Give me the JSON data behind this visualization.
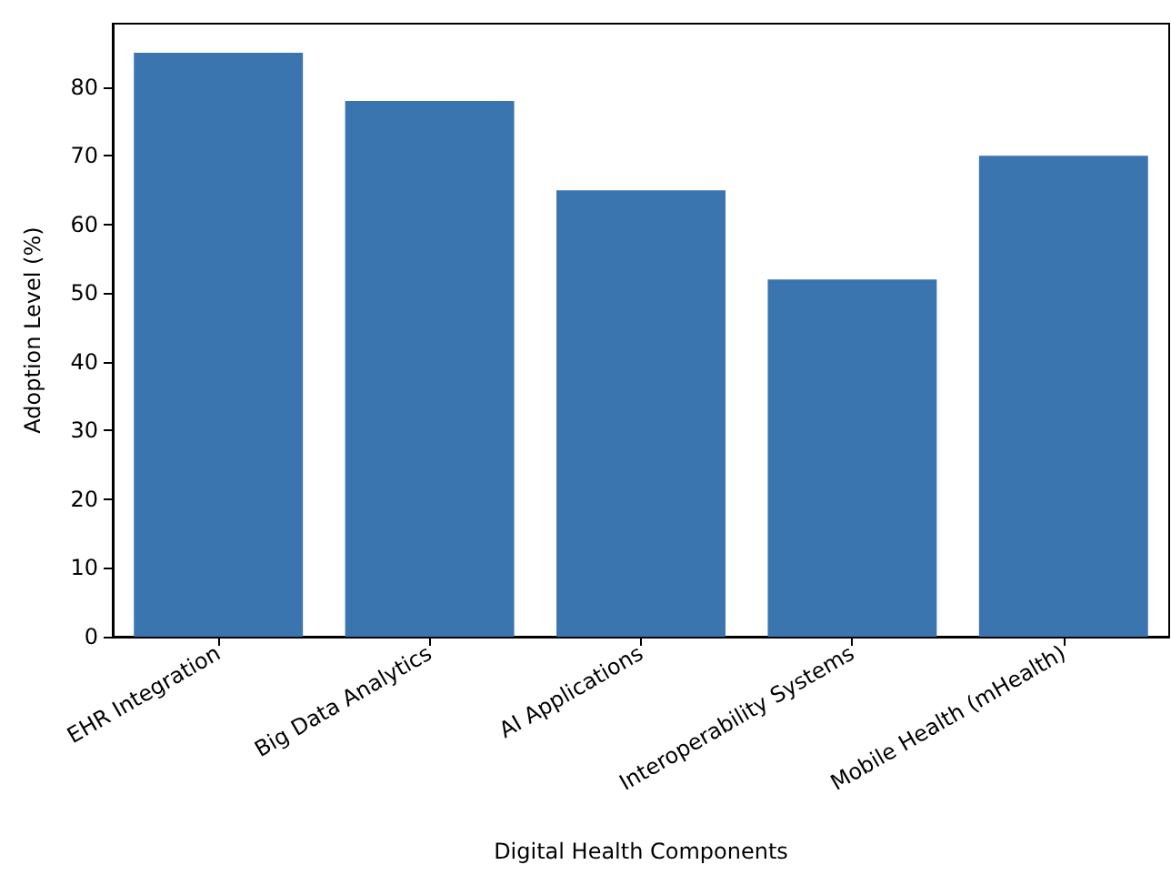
{
  "chart_data": {
    "type": "bar",
    "xlabel": "Digital Health Components",
    "ylabel": "Adoption Level (%)",
    "categories": [
      "EHR Integration",
      "Big Data Analytics",
      "AI Applications",
      "Interoperability Systems",
      "Mobile Health (mHealth)"
    ],
    "values": [
      85,
      78,
      65,
      52,
      70
    ],
    "color": "#3a75af",
    "ylim": [
      0,
      89.25
    ],
    "yticks": [
      0,
      10,
      20,
      30,
      40,
      50,
      60,
      70,
      80
    ],
    "grid": false
  }
}
